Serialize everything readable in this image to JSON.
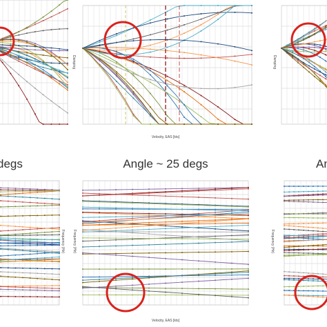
{
  "top_row": {
    "center": {
      "y_label": "Damping",
      "x_label": "Velocity, EAS [kts]"
    },
    "right": {
      "y_label": "Damping"
    }
  },
  "bottom_row": {
    "left": {
      "title": "degs",
      "y_label": "Frequency (Hz)"
    },
    "center": {
      "title": "Angle ~ 25 degs",
      "y_label": "Frequency (Hz)",
      "x_label": "Velocity, EAS [kts]"
    },
    "right": {
      "title": "An",
      "y_label": "Frequency (Hz)"
    }
  }
}
